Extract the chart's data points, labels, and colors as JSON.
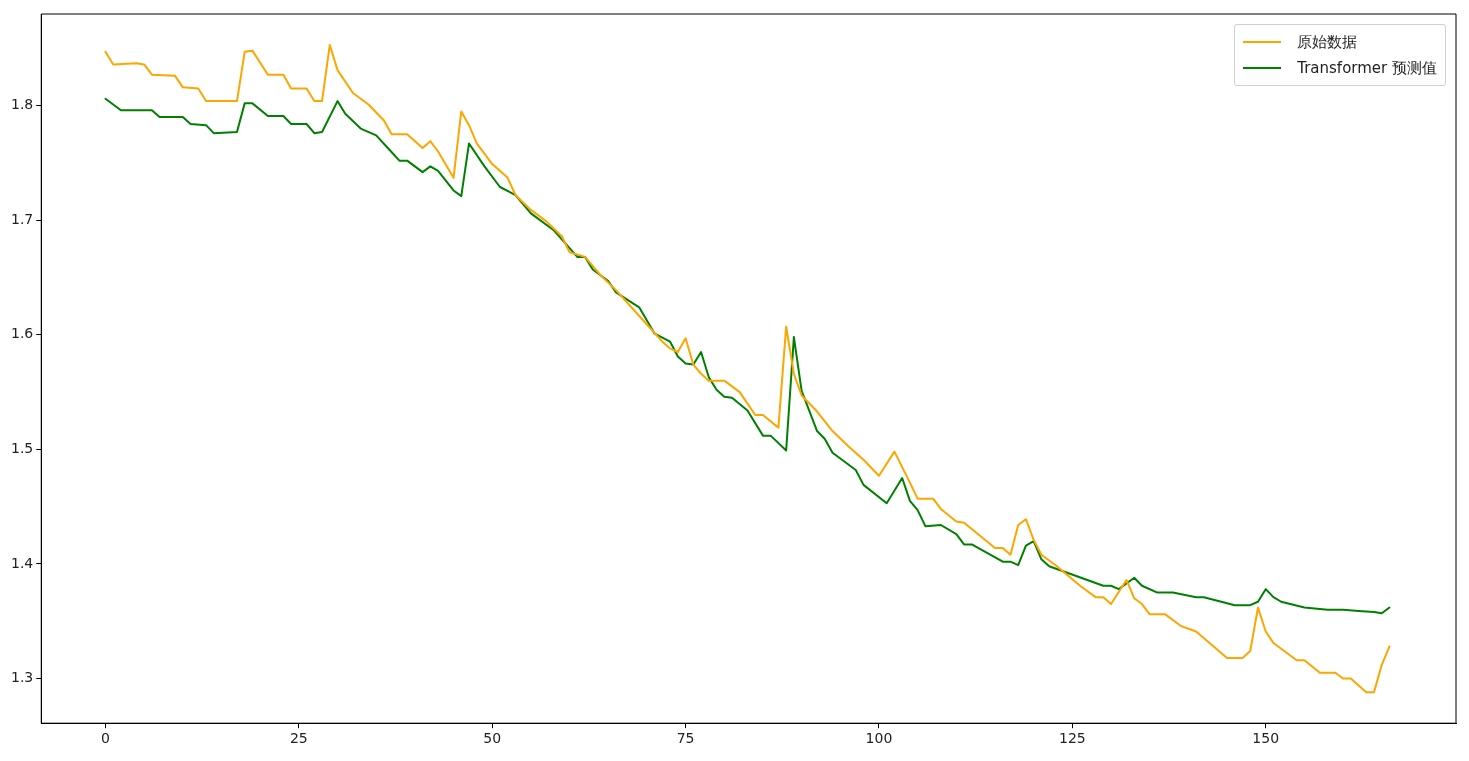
{
  "chart_data": {
    "type": "line",
    "xlim": [
      -8.3,
      174.6
    ],
    "ylim": [
      1.261,
      1.88
    ],
    "xticks": [
      0,
      25,
      50,
      75,
      100,
      125,
      150
    ],
    "yticks": [
      1.3,
      1.4,
      1.5,
      1.6,
      1.7,
      1.8
    ],
    "grid": false,
    "legend": "top right",
    "marker": "none",
    "line_style": "solid",
    "series": [
      {
        "name": "原始数据",
        "color": "#ffa500",
        "x": [
          0,
          1,
          4,
          5,
          6,
          9,
          10,
          12,
          13,
          17,
          18,
          19,
          21,
          23,
          24,
          26,
          27,
          28,
          29,
          30,
          32,
          34,
          36,
          37,
          39,
          41,
          42,
          43,
          45,
          46,
          47,
          48,
          50,
          52,
          53,
          55,
          57,
          59,
          60,
          62,
          64,
          66,
          70,
          72,
          73,
          74,
          75,
          76,
          77,
          78,
          80,
          82,
          84,
          85,
          87,
          88,
          89,
          90,
          92,
          94,
          96,
          98,
          100,
          102,
          104,
          105,
          107,
          108,
          110,
          111,
          115,
          116,
          117,
          118,
          119,
          120,
          121,
          123,
          126,
          128,
          129,
          130,
          132,
          133,
          134,
          135,
          137,
          139,
          141,
          145,
          147,
          148,
          149,
          150,
          151,
          154,
          155,
          157,
          159,
          160,
          161,
          163,
          164,
          165,
          166
        ],
        "values": [
          1.847,
          1.836,
          1.837,
          1.836,
          1.827,
          1.826,
          1.816,
          1.815,
          1.804,
          1.804,
          1.847,
          1.848,
          1.827,
          1.827,
          1.815,
          1.815,
          1.804,
          1.804,
          1.853,
          1.831,
          1.811,
          1.801,
          1.787,
          1.775,
          1.775,
          1.763,
          1.769,
          1.76,
          1.737,
          1.795,
          1.783,
          1.767,
          1.749,
          1.737,
          1.722,
          1.709,
          1.699,
          1.686,
          1.672,
          1.668,
          1.652,
          1.639,
          1.609,
          1.594,
          1.588,
          1.585,
          1.597,
          1.574,
          1.566,
          1.56,
          1.56,
          1.55,
          1.53,
          1.53,
          1.519,
          1.607,
          1.566,
          1.547,
          1.533,
          1.516,
          1.503,
          1.491,
          1.477,
          1.498,
          1.471,
          1.457,
          1.457,
          1.448,
          1.437,
          1.436,
          1.414,
          1.414,
          1.408,
          1.434,
          1.439,
          1.421,
          1.408,
          1.398,
          1.381,
          1.371,
          1.371,
          1.365,
          1.386,
          1.37,
          1.365,
          1.356,
          1.356,
          1.346,
          1.341,
          1.318,
          1.318,
          1.324,
          1.362,
          1.341,
          1.331,
          1.316,
          1.316,
          1.305,
          1.305,
          1.3,
          1.3,
          1.288,
          1.288,
          1.312,
          1.328
        ]
      },
      {
        "name": "Transformer 预测值",
        "color": "#008000",
        "x": [
          0,
          2,
          6,
          7,
          10,
          11,
          13,
          14,
          17,
          18,
          19,
          21,
          23,
          24,
          26,
          27,
          28,
          30,
          31,
          33,
          35,
          36.5,
          38,
          39,
          41,
          42,
          43,
          45,
          46,
          47,
          49,
          51,
          53,
          55,
          58,
          61,
          62,
          63,
          65,
          66,
          69,
          71,
          73,
          74,
          75,
          76,
          77,
          78,
          79,
          80,
          81,
          83,
          85,
          86,
          88,
          89,
          90,
          92,
          93,
          94,
          97,
          98,
          101,
          103,
          104,
          105,
          106,
          108,
          110,
          111,
          112,
          116,
          117,
          118,
          119,
          120,
          121,
          122,
          129,
          130,
          131,
          133,
          134,
          136,
          138,
          141,
          142,
          146,
          148,
          149,
          150,
          151,
          152,
          155,
          158,
          160,
          162,
          164,
          165,
          166
        ],
        "values": [
          1.806,
          1.796,
          1.796,
          1.79,
          1.79,
          1.784,
          1.783,
          1.776,
          1.777,
          1.802,
          1.802,
          1.791,
          1.791,
          1.784,
          1.784,
          1.776,
          1.777,
          1.804,
          1.793,
          1.78,
          1.774,
          1.763,
          1.752,
          1.752,
          1.742,
          1.747,
          1.743,
          1.726,
          1.721,
          1.767,
          1.747,
          1.729,
          1.722,
          1.706,
          1.691,
          1.668,
          1.668,
          1.657,
          1.647,
          1.637,
          1.624,
          1.601,
          1.594,
          1.581,
          1.575,
          1.574,
          1.585,
          1.563,
          1.552,
          1.546,
          1.545,
          1.534,
          1.512,
          1.512,
          1.499,
          1.598,
          1.551,
          1.516,
          1.509,
          1.497,
          1.482,
          1.469,
          1.453,
          1.475,
          1.455,
          1.447,
          1.433,
          1.434,
          1.426,
          1.417,
          1.417,
          1.402,
          1.402,
          1.399,
          1.416,
          1.42,
          1.404,
          1.398,
          1.381,
          1.381,
          1.378,
          1.388,
          1.381,
          1.375,
          1.375,
          1.371,
          1.371,
          1.364,
          1.364,
          1.367,
          1.378,
          1.371,
          1.367,
          1.362,
          1.36,
          1.36,
          1.359,
          1.358,
          1.357,
          1.362
        ]
      }
    ]
  }
}
